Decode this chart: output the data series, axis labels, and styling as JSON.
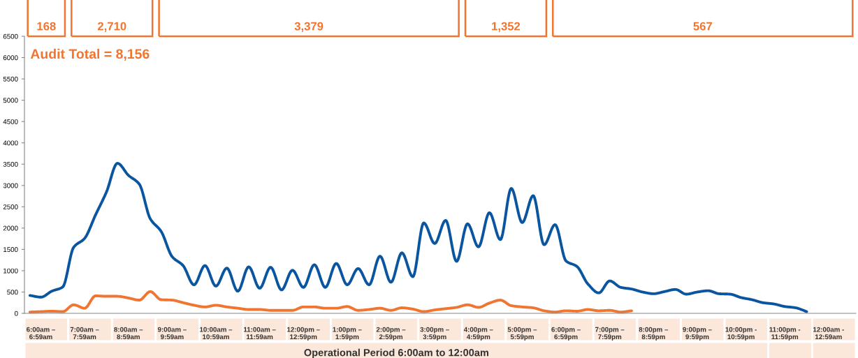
{
  "chart_data": {
    "type": "line",
    "annotations": [
      "Audit Total = 8,156",
      "168",
      "2,710",
      "3,379",
      "1,352",
      "567"
    ],
    "xlabel": "Operational Period 6:00am to 12:00am",
    "categories": [
      null,
      "6:00am –\n6:59am",
      null,
      null,
      null,
      "7:00am –\n7:59am",
      null,
      null,
      null,
      "8:00am –\n8:59am",
      null,
      null,
      null,
      "9:00am –\n9:59am",
      null,
      null,
      null,
      "10:00am –\n10:59am",
      null,
      null,
      null,
      "11:00am –\n11:59am",
      null,
      null,
      null,
      "12:00pm –\n12:59pm",
      null,
      null,
      null,
      "1:00pm –\n1:59pm",
      null,
      null,
      null,
      "2:00pm –\n2:59pm",
      null,
      null,
      null,
      "3:00pm –\n3:59pm",
      null,
      null,
      null,
      "4:00pm –\n4:59pm",
      null,
      null,
      null,
      "5:00pm –\n5:59pm",
      null,
      null,
      null,
      "6:00pm –\n6:59pm",
      null,
      null,
      null,
      "7:00pm –\n7:59pm",
      null,
      null,
      null,
      "8:00pm –\n8:59pm",
      null,
      null,
      null,
      "9:00pm –\n9:59pm",
      null,
      null,
      null,
      "10:00pm -\n10:59pm",
      null,
      null,
      null,
      "11:00pm -\n11:59pm",
      null,
      null,
      null,
      "12:00am -\n12:59am",
      null,
      null
    ],
    "series": [
      {
        "color": "#0a55a0",
        "values": [
          420,
          380,
          520,
          620,
          1550,
          1760,
          2310,
          2850,
          3520,
          3240,
          3030,
          2220,
          1920,
          1330,
          1120,
          670,
          1120,
          640,
          1060,
          520,
          1090,
          590,
          1080,
          550,
          1010,
          610,
          1140,
          610,
          1170,
          670,
          1050,
          670,
          1340,
          730,
          1420,
          860,
          2120,
          1640,
          2180,
          1220,
          2100,
          1560,
          2360,
          1730,
          2930,
          2130,
          2760,
          1610,
          2080,
          1230,
          1100,
          690,
          480,
          760,
          610,
          570,
          500,
          460,
          510,
          560,
          450,
          500,
          530,
          460,
          450,
          370,
          320,
          250,
          220,
          160,
          130,
          40,
          null,
          null,
          null,
          null
        ]
      },
      {
        "color": "#f07530",
        "values": [
          30,
          40,
          50,
          40,
          200,
          120,
          410,
          400,
          400,
          360,
          310,
          510,
          320,
          310,
          250,
          190,
          150,
          190,
          150,
          120,
          90,
          90,
          70,
          70,
          70,
          150,
          150,
          120,
          120,
          160,
          70,
          90,
          120,
          70,
          130,
          100,
          40,
          80,
          110,
          140,
          200,
          140,
          240,
          310,
          180,
          150,
          130,
          60,
          30,
          60,
          50,
          90,
          60,
          70,
          30,
          60,
          null,
          null,
          null,
          null,
          null,
          null,
          null,
          null,
          null,
          null,
          null,
          null,
          null,
          null,
          null,
          null,
          null,
          null,
          null,
          null
        ]
      }
    ],
    "ylim": [
      0,
      6500
    ],
    "yticks": [
      0,
      500,
      1000,
      1500,
      2000,
      2500,
      3000,
      3500,
      4000,
      4500,
      5000,
      5500,
      6000,
      6500
    ],
    "grid": false,
    "line_style": "solid",
    "marker": "none"
  }
}
